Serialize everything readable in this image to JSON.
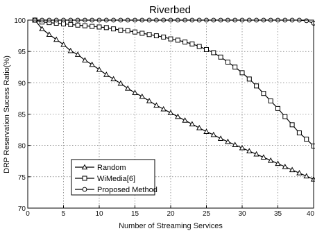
{
  "chart_data": {
    "type": "line",
    "title": "Riverbed",
    "xlabel": "Number of Streaming Services",
    "ylabel": "DRP Reservation Sucess Ratio(%)",
    "xlim": [
      0,
      40
    ],
    "ylim": [
      70,
      100
    ],
    "xticks": [
      0,
      5,
      10,
      15,
      20,
      25,
      30,
      35,
      40
    ],
    "yticks": [
      70,
      75,
      80,
      85,
      90,
      95,
      100
    ],
    "grid": true,
    "legend_position": "bottom-left",
    "x": [
      1,
      2,
      3,
      4,
      5,
      6,
      7,
      8,
      9,
      10,
      11,
      12,
      13,
      14,
      15,
      16,
      17,
      18,
      19,
      20,
      21,
      22,
      23,
      24,
      25,
      26,
      27,
      28,
      29,
      30,
      31,
      32,
      33,
      34,
      35,
      36,
      37,
      38,
      39,
      40
    ],
    "series": [
      {
        "name": "Random",
        "marker": "triangle",
        "values": [
          100,
          98.6,
          97.7,
          96.9,
          96.1,
          95.1,
          94.5,
          93.6,
          92.9,
          92.1,
          91.3,
          90.6,
          89.9,
          89.1,
          88.4,
          87.8,
          87.1,
          86.4,
          85.8,
          85.2,
          84.6,
          84.0,
          83.4,
          82.8,
          82.2,
          81.7,
          81.1,
          80.6,
          80.1,
          79.6,
          79.1,
          78.6,
          78.1,
          77.6,
          77.1,
          76.6,
          76.1,
          75.6,
          75.1,
          74.6
        ]
      },
      {
        "name": "WiMedia[6]",
        "marker": "square",
        "values": [
          100,
          99.7,
          99.6,
          99.5,
          99.4,
          99.3,
          99.2,
          99.1,
          99.0,
          98.9,
          98.8,
          98.6,
          98.4,
          98.3,
          98.1,
          97.9,
          97.7,
          97.5,
          97.3,
          97.0,
          96.8,
          96.5,
          96.2,
          95.8,
          95.3,
          94.8,
          94.1,
          93.3,
          92.5,
          91.6,
          90.6,
          89.5,
          88.3,
          87.1,
          85.9,
          84.6,
          83.3,
          82.0,
          81.0,
          79.9
        ]
      },
      {
        "name": "Proposed Method",
        "marker": "circle",
        "values": [
          100,
          100,
          100,
          100,
          100,
          100,
          100,
          100,
          100,
          100,
          100,
          100,
          100,
          100,
          100,
          100,
          100,
          100,
          100,
          100,
          100,
          100,
          100,
          100,
          100,
          100,
          100,
          100,
          100,
          100,
          100,
          100,
          100,
          100,
          100,
          100,
          100,
          100,
          99.9,
          99.5
        ]
      }
    ]
  }
}
